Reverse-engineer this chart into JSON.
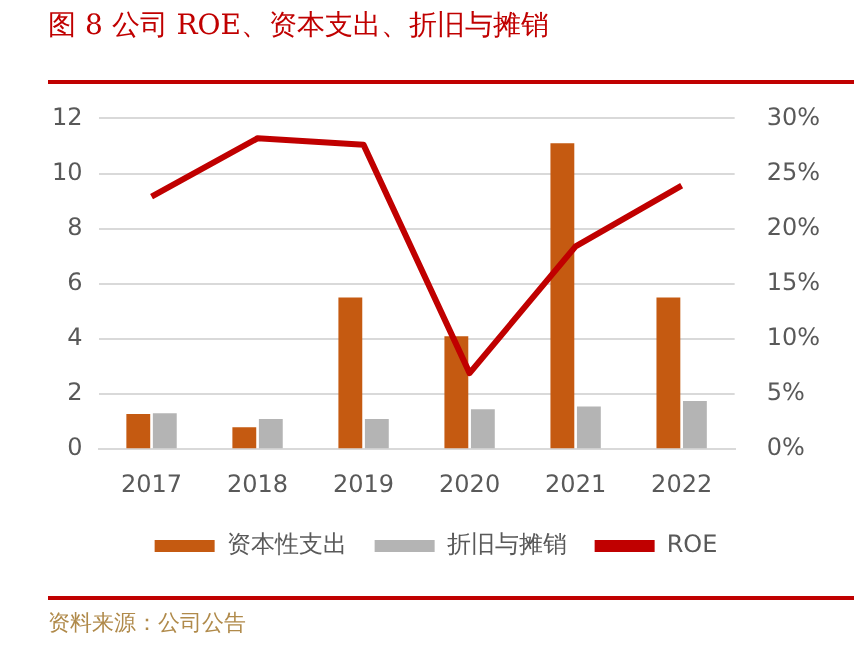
{
  "chart_data": {
    "type": "bar",
    "title": "图 8 公司 ROE、资本支出、折旧与摊销",
    "categories": [
      "2017",
      "2018",
      "2019",
      "2020",
      "2021",
      "2022"
    ],
    "series": [
      {
        "name": "资本性支出",
        "color": "#c55a11",
        "values": [
          1.28,
          0.8,
          5.5,
          4.1,
          11.1,
          5.5
        ]
      },
      {
        "name": "折旧与摊销",
        "color": "#b4b4b4",
        "values": [
          1.3,
          1.1,
          1.1,
          1.45,
          1.55,
          1.75
        ]
      },
      {
        "name": "ROE",
        "type": "line",
        "axis": "y2",
        "color": "#c00000",
        "values": [
          22.9,
          28.2,
          27.6,
          6.9,
          18.4,
          23.9
        ]
      }
    ],
    "ylim": [
      0,
      12
    ],
    "yticks": [
      0,
      2,
      4,
      6,
      8,
      10,
      12
    ],
    "y2lim": [
      0,
      30
    ],
    "y2ticks": [
      {
        "value": 0,
        "label": "0%"
      },
      {
        "value": 5,
        "label": "5%"
      },
      {
        "value": 10,
        "label": "10%"
      },
      {
        "value": 15,
        "label": "15%"
      },
      {
        "value": 20,
        "label": "20%"
      },
      {
        "value": 25,
        "label": "25%"
      },
      {
        "value": 30,
        "label": "30%"
      }
    ],
    "grid": "y",
    "legend": "bottom",
    "marker": "none",
    "line_style": "solid",
    "annotations": [
      "资料来源：公司公告"
    ]
  }
}
